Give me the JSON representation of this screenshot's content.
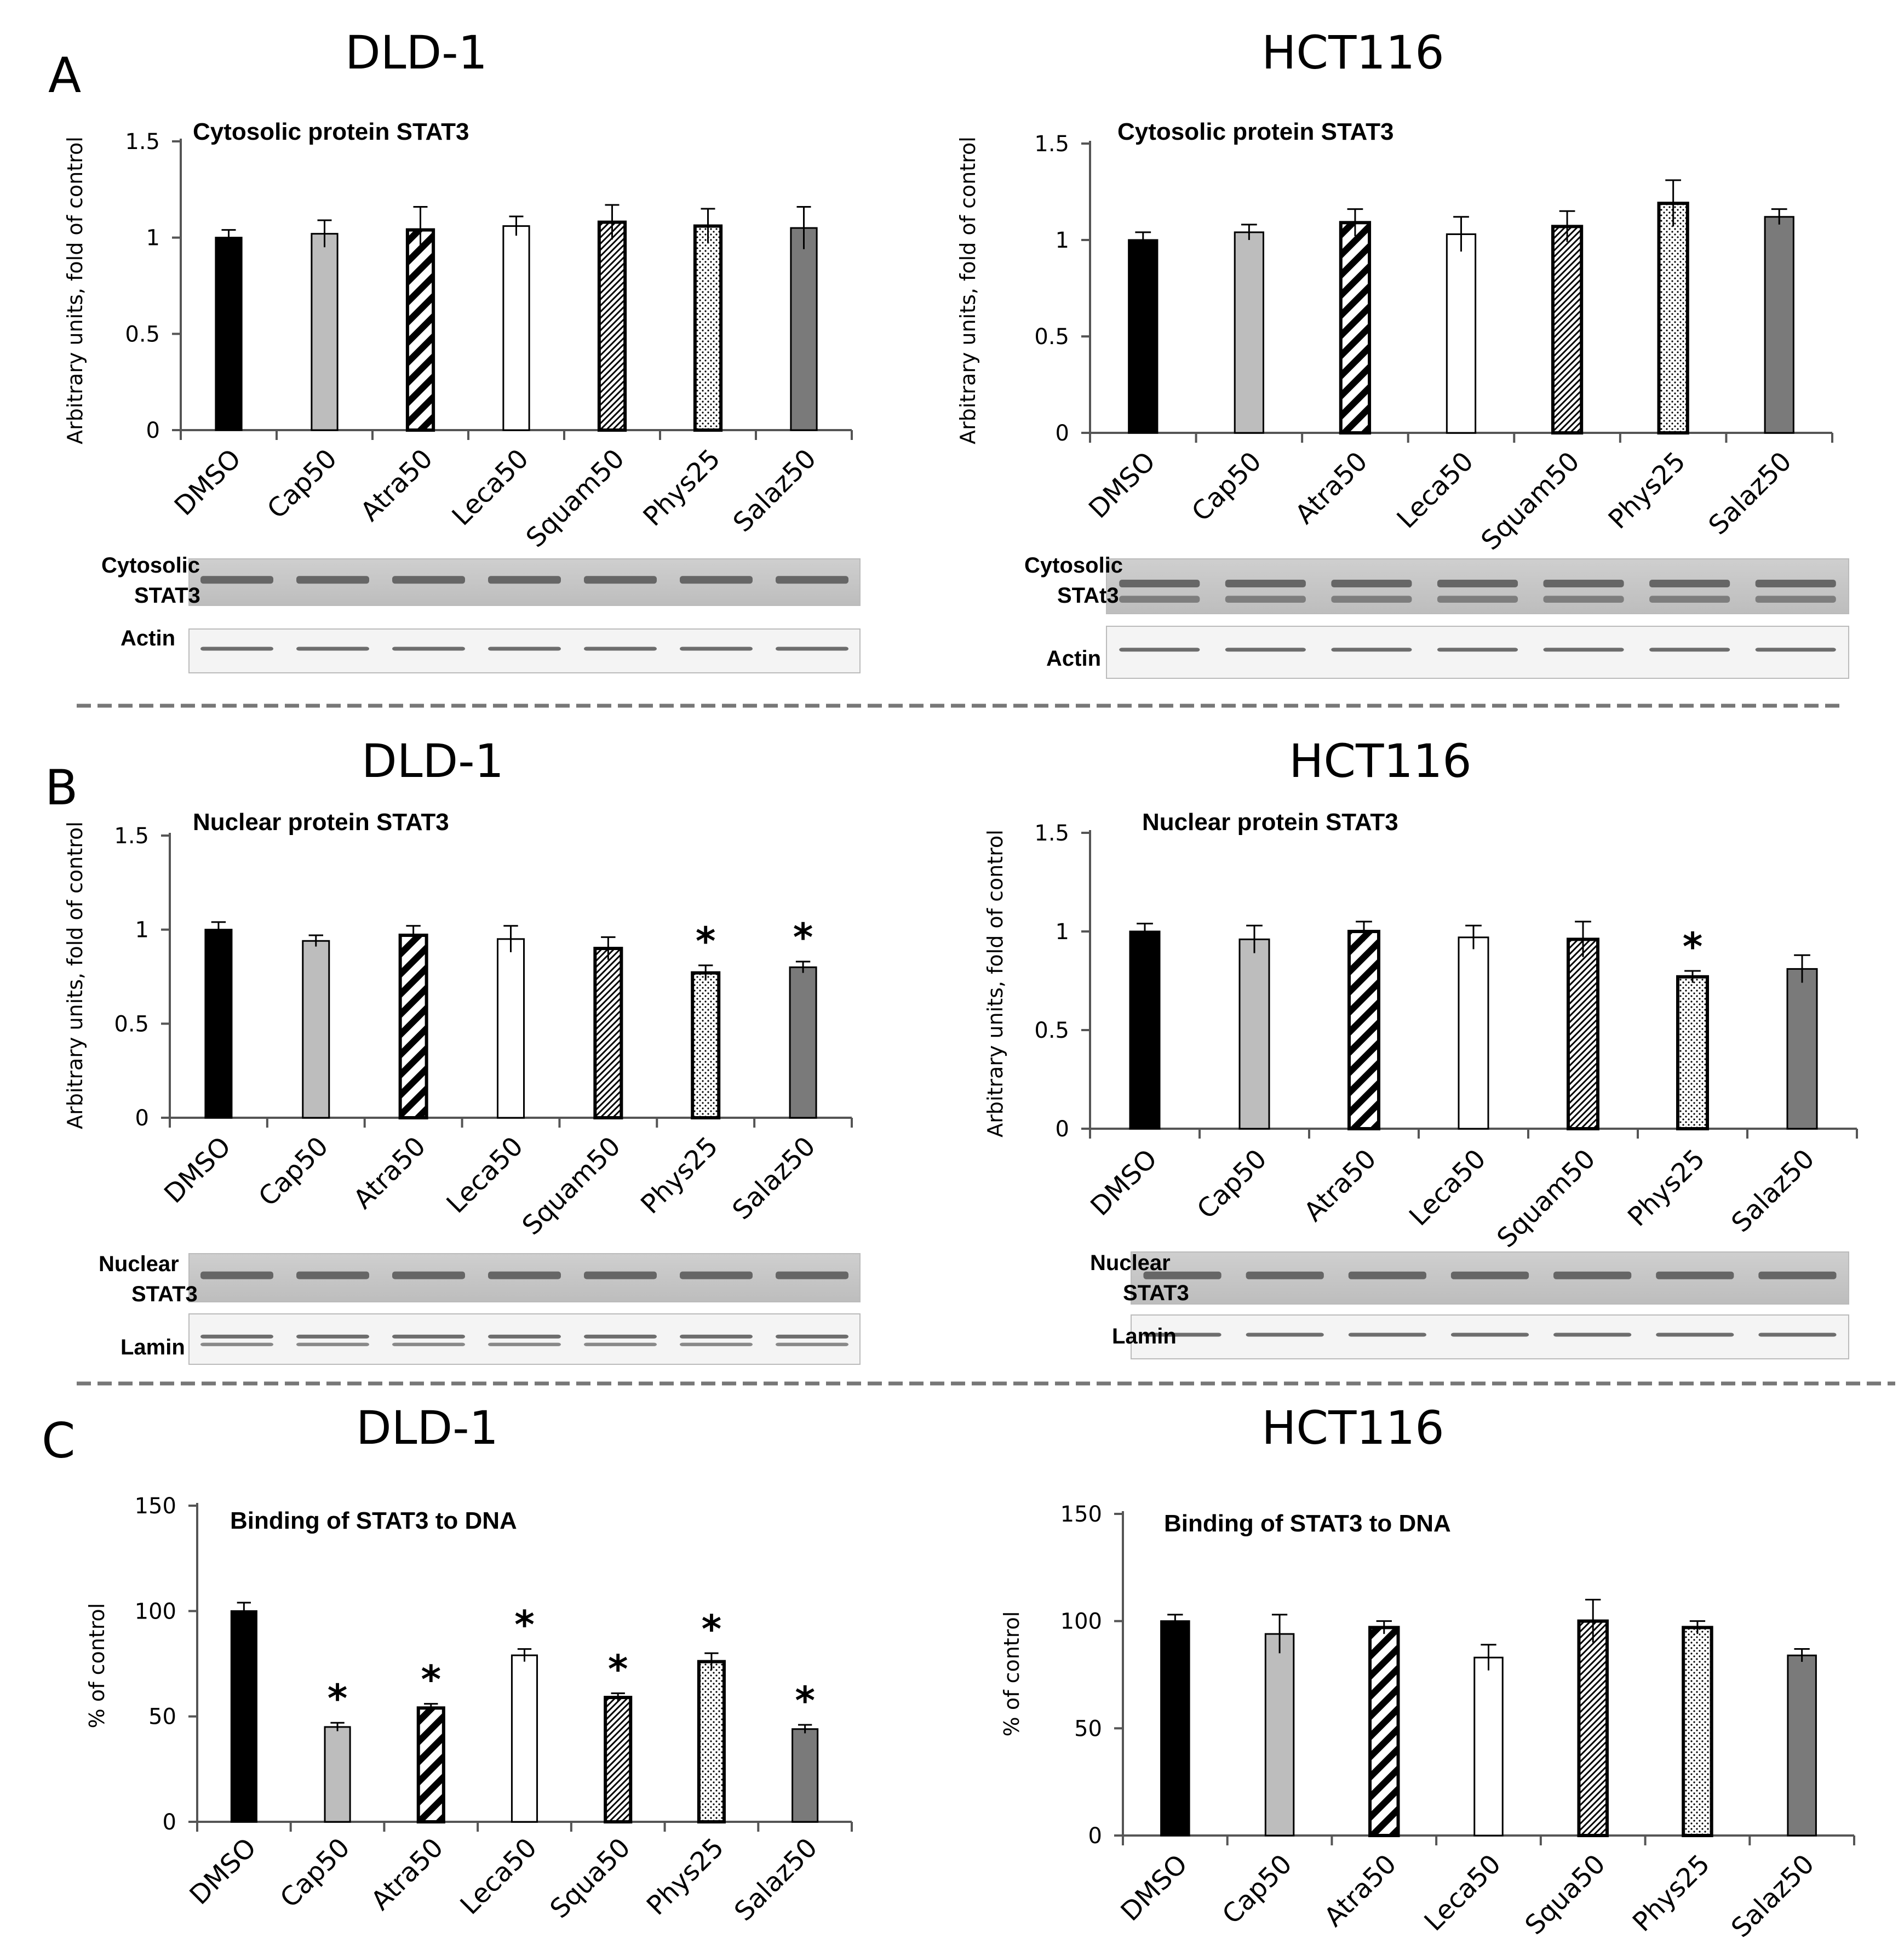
{
  "sections": [
    {
      "letter": "A"
    },
    {
      "letter": "B"
    },
    {
      "letter": "C"
    }
  ],
  "styles": {
    "DMSO": {
      "fill": "#000000",
      "pattern": "solid"
    },
    "Cap": {
      "fill": "#bdbdbd",
      "pattern": "solid"
    },
    "Atra": {
      "fill": "#ffffff",
      "pattern": "diag-wide"
    },
    "Leca": {
      "fill": "#ffffff",
      "pattern": "solid"
    },
    "Squam": {
      "fill": "#ffffff",
      "pattern": "diag-fine"
    },
    "Phys": {
      "fill": "#ffffff",
      "pattern": "dots"
    },
    "Salaz": {
      "fill": "#7a7a7a",
      "pattern": "solid"
    }
  },
  "chart_data": [
    {
      "id": "A-DLD1",
      "type": "bar",
      "cell_line": "DLD-1",
      "title": "Cytosolic protein STAT3",
      "ylabel": "Arbitrary units, fold of control",
      "ylim": [
        0,
        1.5
      ],
      "yticks": [
        "0",
        "0.5",
        "1",
        "1.5"
      ],
      "categories": [
        "DMSO",
        "Cap50",
        "Atra50",
        "Leca50",
        "Squam50",
        "Phys25",
        "Salaz50"
      ],
      "styles": [
        "DMSO",
        "Cap",
        "Atra",
        "Leca",
        "Squam",
        "Phys",
        "Salaz"
      ],
      "values": [
        1.0,
        1.02,
        1.04,
        1.06,
        1.08,
        1.06,
        1.05
      ],
      "errors": [
        0.04,
        0.07,
        0.12,
        0.05,
        0.09,
        0.09,
        0.11
      ],
      "significant": [
        false,
        false,
        false,
        false,
        false,
        false,
        false
      ],
      "blots": [
        {
          "label": "Cytosolic\nSTAT3"
        },
        {
          "label": "Actin"
        }
      ]
    },
    {
      "id": "A-HCT116",
      "type": "bar",
      "cell_line": "HCT116",
      "title": "Cytosolic protein STAT3",
      "ylabel": "Arbitrary units, fold of control",
      "ylim": [
        0,
        1.5
      ],
      "yticks": [
        "0",
        "0.5",
        "1",
        "1.5"
      ],
      "categories": [
        "DMSO",
        "Cap50",
        "Atra50",
        "Leca50",
        "Squam50",
        "Phys25",
        "Salaz50"
      ],
      "styles": [
        "DMSO",
        "Cap",
        "Atra",
        "Leca",
        "Squam",
        "Phys",
        "Salaz"
      ],
      "values": [
        1.0,
        1.04,
        1.09,
        1.03,
        1.07,
        1.19,
        1.12
      ],
      "errors": [
        0.04,
        0.04,
        0.07,
        0.09,
        0.08,
        0.12,
        0.04
      ],
      "significant": [
        false,
        false,
        false,
        false,
        false,
        false,
        false
      ],
      "blots": [
        {
          "label": "Cytosolic\nSTAt3"
        },
        {
          "label": "Actin"
        }
      ]
    },
    {
      "id": "B-DLD1",
      "type": "bar",
      "cell_line": "DLD-1",
      "title": "Nuclear protein STAT3",
      "ylabel": "Arbitrary units, fold of control",
      "ylim": [
        0,
        1.5
      ],
      "yticks": [
        "0",
        "0.5",
        "1",
        "1.5"
      ],
      "categories": [
        "DMSO",
        "Cap50",
        "Atra50",
        "Leca50",
        "Squam50",
        "Phys25",
        "Salaz50"
      ],
      "styles": [
        "DMSO",
        "Cap",
        "Atra",
        "Leca",
        "Squam",
        "Phys",
        "Salaz"
      ],
      "values": [
        1.0,
        0.94,
        0.97,
        0.95,
        0.9,
        0.77,
        0.8
      ],
      "errors": [
        0.04,
        0.03,
        0.05,
        0.07,
        0.06,
        0.04,
        0.03
      ],
      "significant": [
        false,
        false,
        false,
        false,
        false,
        true,
        true
      ],
      "blots": [
        {
          "label": "Nuclear\nSTAT3"
        },
        {
          "label": "Lamin"
        }
      ]
    },
    {
      "id": "B-HCT116",
      "type": "bar",
      "cell_line": "HCT116",
      "title": "Nuclear protein STAT3",
      "ylabel": "Arbitrary units, fold of control",
      "ylim": [
        0,
        1.5
      ],
      "yticks": [
        "0",
        "0.5",
        "1",
        "1.5"
      ],
      "categories": [
        "DMSO",
        "Cap50",
        "Atra50",
        "Leca50",
        "Squam50",
        "Phys25",
        "Salaz50"
      ],
      "styles": [
        "DMSO",
        "Cap",
        "Atra",
        "Leca",
        "Squam",
        "Phys",
        "Salaz"
      ],
      "values": [
        1.0,
        0.96,
        1.0,
        0.97,
        0.96,
        0.77,
        0.81
      ],
      "errors": [
        0.04,
        0.07,
        0.05,
        0.06,
        0.09,
        0.03,
        0.07
      ],
      "significant": [
        false,
        false,
        false,
        false,
        false,
        true,
        false
      ],
      "blots": [
        {
          "label": "Nuclear\nSTAT3"
        },
        {
          "label": "Lamin"
        }
      ]
    },
    {
      "id": "C-DLD1",
      "type": "bar",
      "cell_line": "DLD-1",
      "title": "Binding of STAT3 to DNA",
      "ylabel": "% of control",
      "ylim": [
        0,
        150
      ],
      "yticks": [
        "0",
        "50",
        "100",
        "150"
      ],
      "categories": [
        "DMSO",
        "Cap50",
        "Atra50",
        "Leca50",
        "Squa50",
        "Phys25",
        "Salaz50"
      ],
      "styles": [
        "DMSO",
        "Cap",
        "Atra",
        "Leca",
        "Squam",
        "Phys",
        "Salaz"
      ],
      "values": [
        100,
        45,
        54,
        79,
        59,
        76,
        44
      ],
      "errors": [
        4,
        2,
        2,
        3,
        2,
        4,
        2
      ],
      "significant": [
        false,
        true,
        true,
        true,
        true,
        true,
        true
      ],
      "blots": []
    },
    {
      "id": "C-HCT116",
      "type": "bar",
      "cell_line": "HCT116",
      "title": "Binding of STAT3 to DNA",
      "ylabel": "% of control",
      "ylim": [
        0,
        150
      ],
      "yticks": [
        "0",
        "50",
        "100",
        "150"
      ],
      "categories": [
        "DMSO",
        "Cap50",
        "Atra50",
        "Leca50",
        "Squa50",
        "Phys25",
        "Salaz50"
      ],
      "styles": [
        "DMSO",
        "Cap",
        "Atra",
        "Leca",
        "Squam",
        "Phys",
        "Salaz"
      ],
      "values": [
        100,
        94,
        97,
        83,
        100,
        97,
        84
      ],
      "errors": [
        3,
        9,
        3,
        6,
        10,
        3,
        3
      ],
      "significant": [
        false,
        false,
        false,
        false,
        false,
        false,
        false
      ],
      "blots": []
    }
  ]
}
